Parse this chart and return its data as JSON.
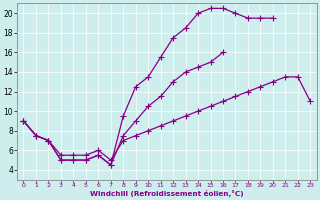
{
  "xlabel": "Windchill (Refroidissement éolien,°C)",
  "bg_color": "#ceeeed",
  "line_color": "#880088",
  "xlim": [
    -0.5,
    23.5
  ],
  "ylim": [
    3.0,
    21.0
  ],
  "xticks": [
    0,
    1,
    2,
    3,
    4,
    5,
    6,
    7,
    8,
    9,
    10,
    11,
    12,
    13,
    14,
    15,
    16,
    17,
    18,
    19,
    20,
    21,
    22,
    23
  ],
  "yticks": [
    4,
    6,
    8,
    10,
    12,
    14,
    16,
    18,
    20
  ],
  "series1_x": [
    0,
    1,
    2,
    3,
    4,
    5,
    6,
    7,
    8,
    9,
    10,
    11,
    12,
    13,
    14,
    15,
    16,
    17,
    18,
    19,
    20,
    21,
    22,
    23
  ],
  "series1_y": [
    9.0,
    7.5,
    7.0,
    5.0,
    5.0,
    5.0,
    5.5,
    4.5,
    9.5,
    12.5,
    13.5,
    15.5,
    17.5,
    18.5,
    20.0,
    20.5,
    20.5,
    20.0,
    19.5,
    19.5,
    19.5,
    null,
    null,
    null
  ],
  "series2_x": [
    0,
    1,
    2,
    3,
    4,
    5,
    6,
    7,
    8,
    9,
    10,
    11,
    12,
    13,
    14,
    15,
    16,
    17,
    18,
    19,
    20,
    21,
    22,
    23
  ],
  "series2_y": [
    9.0,
    7.5,
    7.0,
    5.0,
    5.0,
    5.0,
    5.5,
    4.5,
    7.5,
    9.0,
    10.5,
    11.5,
    13.0,
    14.0,
    14.5,
    15.0,
    16.0,
    null,
    null,
    null,
    null,
    null,
    null,
    null
  ],
  "series3_x": [
    0,
    1,
    2,
    3,
    4,
    5,
    6,
    7,
    8,
    9,
    10,
    11,
    12,
    13,
    14,
    15,
    16,
    17,
    18,
    19,
    20,
    21,
    22,
    23
  ],
  "series3_y": [
    9.0,
    7.5,
    7.0,
    5.5,
    5.5,
    5.5,
    6.0,
    5.0,
    7.0,
    7.5,
    8.0,
    8.5,
    9.0,
    9.5,
    10.0,
    10.5,
    11.0,
    11.5,
    12.0,
    12.5,
    13.0,
    13.5,
    13.5,
    11.0
  ]
}
